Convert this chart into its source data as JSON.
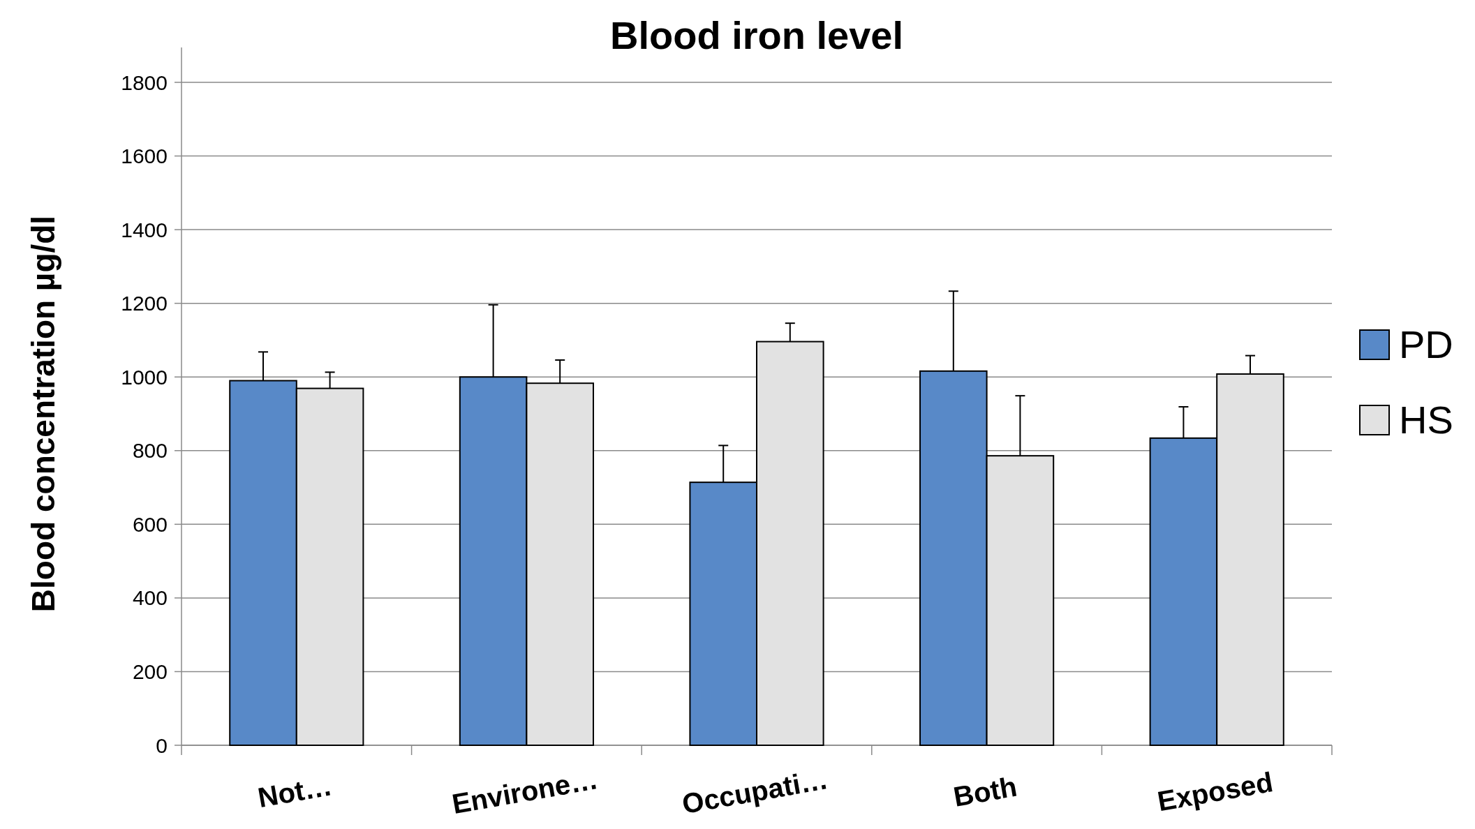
{
  "chart_data": {
    "type": "bar",
    "title": "Blood iron level",
    "ylabel": "Blood concentration µg/dl",
    "categories": [
      "Not…",
      "Environe…",
      "Occupati…",
      "Both",
      "Exposed"
    ],
    "series": [
      {
        "name": "PD",
        "color": "#5889c8",
        "values": [
          990,
          1000,
          714,
          1016,
          834
        ],
        "errors": [
          [
            990,
            1068
          ],
          [
            1000,
            1196
          ],
          [
            714,
            814
          ],
          [
            1016,
            1233
          ],
          [
            834,
            919
          ]
        ]
      },
      {
        "name": "HS",
        "color": "#e2e2e2",
        "values": [
          969,
          983,
          1096,
          786,
          1008
        ],
        "errors": [
          [
            969,
            1013
          ],
          [
            983,
            1046
          ],
          [
            1096,
            1146
          ],
          [
            786,
            949
          ],
          [
            1008,
            1058
          ]
        ]
      }
    ],
    "ylim": [
      0,
      1800
    ],
    "yticks": [
      0,
      200,
      400,
      600,
      800,
      1000,
      1200,
      1400,
      1600,
      1800
    ],
    "grid": "y",
    "legend": "right"
  }
}
